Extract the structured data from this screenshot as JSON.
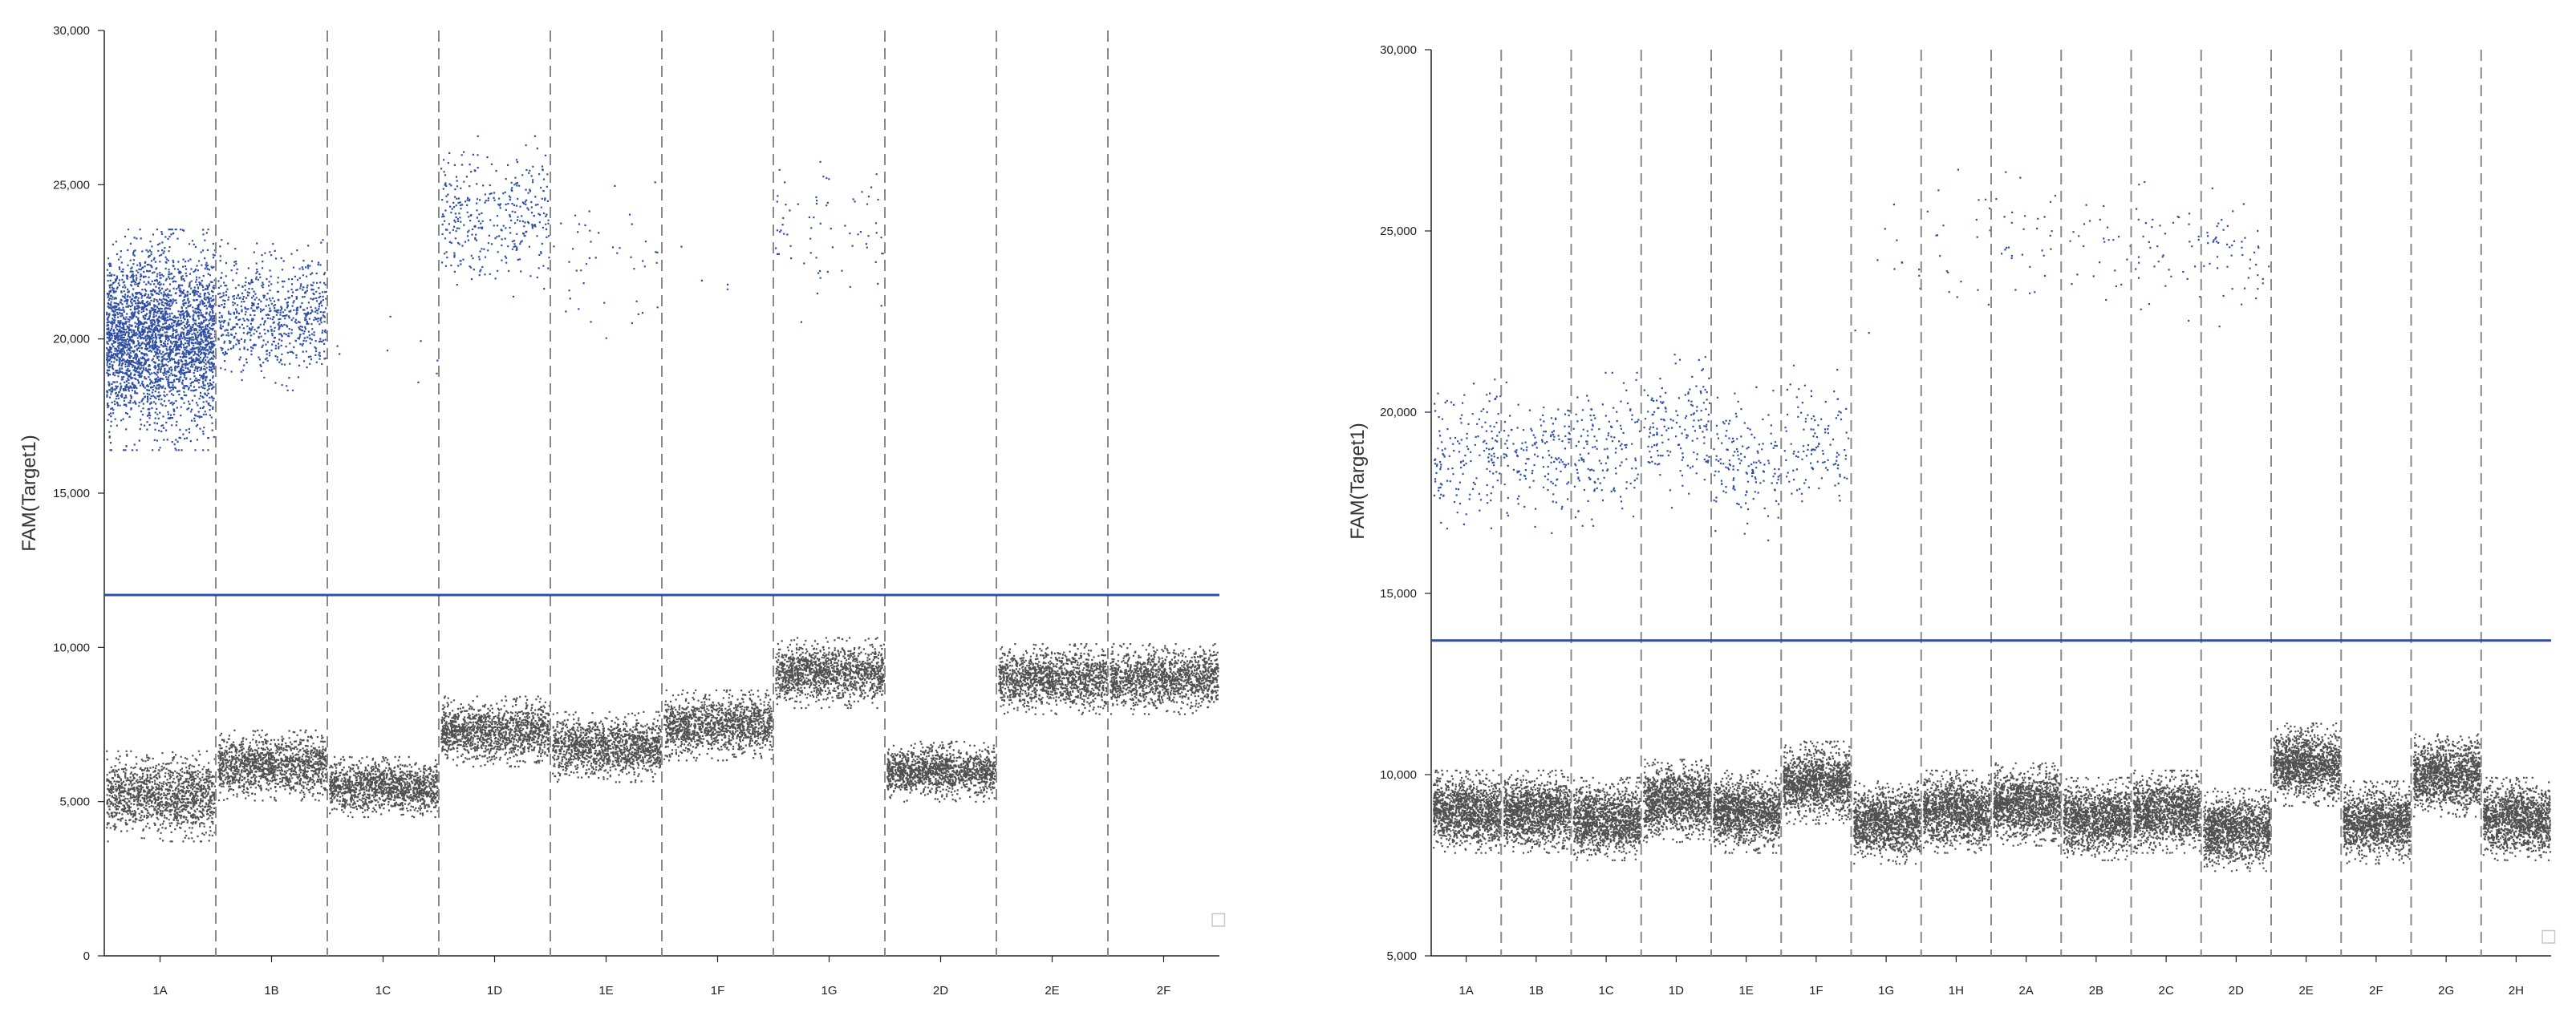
{
  "chart_data": [
    {
      "type": "scatter",
      "title": "",
      "xlabel": "",
      "ylabel": "FAM(Target1)",
      "ylim": [
        0,
        30000
      ],
      "yticks": [
        0,
        5000,
        10000,
        15000,
        20000,
        25000,
        30000
      ],
      "ytick_labels": [
        "0",
        "5,000",
        "10,000",
        "15,000",
        "20,000",
        "25,000",
        "30,000"
      ],
      "threshold": 11700,
      "threshold_color": "#2e4fa3",
      "positive_color": "#2e4fa3",
      "negative_color": "#505050",
      "grid": false,
      "wells": [
        {
          "label": "1A",
          "neg_mean": 5200,
          "neg_spread": 900,
          "pos_mean": 20000,
          "pos_spread": 2200,
          "pos_count": 3000
        },
        {
          "label": "1B",
          "neg_mean": 6200,
          "neg_spread": 700,
          "pos_mean": 20800,
          "pos_spread": 1500,
          "pos_count": 700
        },
        {
          "label": "1C",
          "neg_mean": 5500,
          "neg_spread": 600,
          "pos_mean": 19800,
          "pos_spread": 1300,
          "pos_count": 8
        },
        {
          "label": "1D",
          "neg_mean": 7300,
          "neg_spread": 700,
          "pos_mean": 24000,
          "pos_spread": 1600,
          "pos_count": 350
        },
        {
          "label": "1E",
          "neg_mean": 6800,
          "neg_spread": 700,
          "pos_mean": 22500,
          "pos_spread": 1800,
          "pos_count": 45
        },
        {
          "label": "1F",
          "neg_mean": 7500,
          "neg_spread": 700,
          "pos_mean": 21800,
          "pos_spread": 1500,
          "pos_count": 4
        },
        {
          "label": "1G",
          "neg_mean": 9200,
          "neg_spread": 700,
          "pos_mean": 23500,
          "pos_spread": 1800,
          "pos_count": 70
        },
        {
          "label": "2D",
          "neg_mean": 6000,
          "neg_spread": 600,
          "pos_mean": 0,
          "pos_spread": 0,
          "pos_count": 0
        },
        {
          "label": "2E",
          "neg_mean": 9000,
          "neg_spread": 700,
          "pos_mean": 0,
          "pos_spread": 0,
          "pos_count": 0
        },
        {
          "label": "2F",
          "neg_mean": 9000,
          "neg_spread": 700,
          "pos_mean": 0,
          "pos_spread": 0,
          "pos_count": 0
        }
      ]
    },
    {
      "type": "scatter",
      "title": "",
      "xlabel": "",
      "ylabel": "FAM(Target1)",
      "ylim": [
        5000,
        30000
      ],
      "yticks": [
        5000,
        10000,
        15000,
        20000,
        25000,
        30000
      ],
      "ytick_labels": [
        "5,000",
        "10,000",
        "15,000",
        "20,000",
        "25,000",
        "30,000"
      ],
      "threshold": 13700,
      "threshold_color": "#2e4fa3",
      "positive_color": "#2e4fa3",
      "negative_color": "#505050",
      "grid": false,
      "wells": [
        {
          "label": "1A",
          "neg_mean": 9000,
          "neg_spread": 700,
          "pos_mean": 18800,
          "pos_spread": 1400,
          "pos_count": 160
        },
        {
          "label": "1B",
          "neg_mean": 9000,
          "neg_spread": 700,
          "pos_mean": 18800,
          "pos_spread": 1300,
          "pos_count": 150
        },
        {
          "label": "1C",
          "neg_mean": 8800,
          "neg_spread": 700,
          "pos_mean": 19000,
          "pos_spread": 1300,
          "pos_count": 150
        },
        {
          "label": "1D",
          "neg_mean": 9300,
          "neg_spread": 700,
          "pos_mean": 19500,
          "pos_spread": 1300,
          "pos_count": 160
        },
        {
          "label": "1E",
          "neg_mean": 9000,
          "neg_spread": 700,
          "pos_mean": 18600,
          "pos_spread": 1300,
          "pos_count": 150
        },
        {
          "label": "1F",
          "neg_mean": 9800,
          "neg_spread": 700,
          "pos_mean": 19200,
          "pos_spread": 1300,
          "pos_count": 120
        },
        {
          "label": "1G",
          "neg_mean": 8700,
          "neg_spread": 700,
          "pos_mean": 24000,
          "pos_spread": 1500,
          "pos_count": 12
        },
        {
          "label": "1H",
          "neg_mean": 9000,
          "neg_spread": 700,
          "pos_mean": 24500,
          "pos_spread": 1400,
          "pos_count": 20
        },
        {
          "label": "2A",
          "neg_mean": 9200,
          "neg_spread": 700,
          "pos_mean": 25000,
          "pos_spread": 1300,
          "pos_count": 30
        },
        {
          "label": "2B",
          "neg_mean": 8800,
          "neg_spread": 700,
          "pos_mean": 24500,
          "pos_spread": 1300,
          "pos_count": 25
        },
        {
          "label": "2C",
          "neg_mean": 9000,
          "neg_spread": 700,
          "pos_mean": 24500,
          "pos_spread": 1300,
          "pos_count": 40
        },
        {
          "label": "2D",
          "neg_mean": 8500,
          "neg_spread": 700,
          "pos_mean": 24500,
          "pos_spread": 1300,
          "pos_count": 50
        },
        {
          "label": "2E",
          "neg_mean": 10300,
          "neg_spread": 700,
          "pos_mean": 0,
          "pos_spread": 0,
          "pos_count": 0
        },
        {
          "label": "2F",
          "neg_mean": 8700,
          "neg_spread": 700,
          "pos_mean": 0,
          "pos_spread": 0,
          "pos_count": 0
        },
        {
          "label": "2G",
          "neg_mean": 10000,
          "neg_spread": 700,
          "pos_mean": 0,
          "pos_spread": 0,
          "pos_count": 0
        },
        {
          "label": "2H",
          "neg_mean": 8800,
          "neg_spread": 700,
          "pos_mean": 0,
          "pos_spread": 0,
          "pos_count": 0
        }
      ]
    }
  ]
}
